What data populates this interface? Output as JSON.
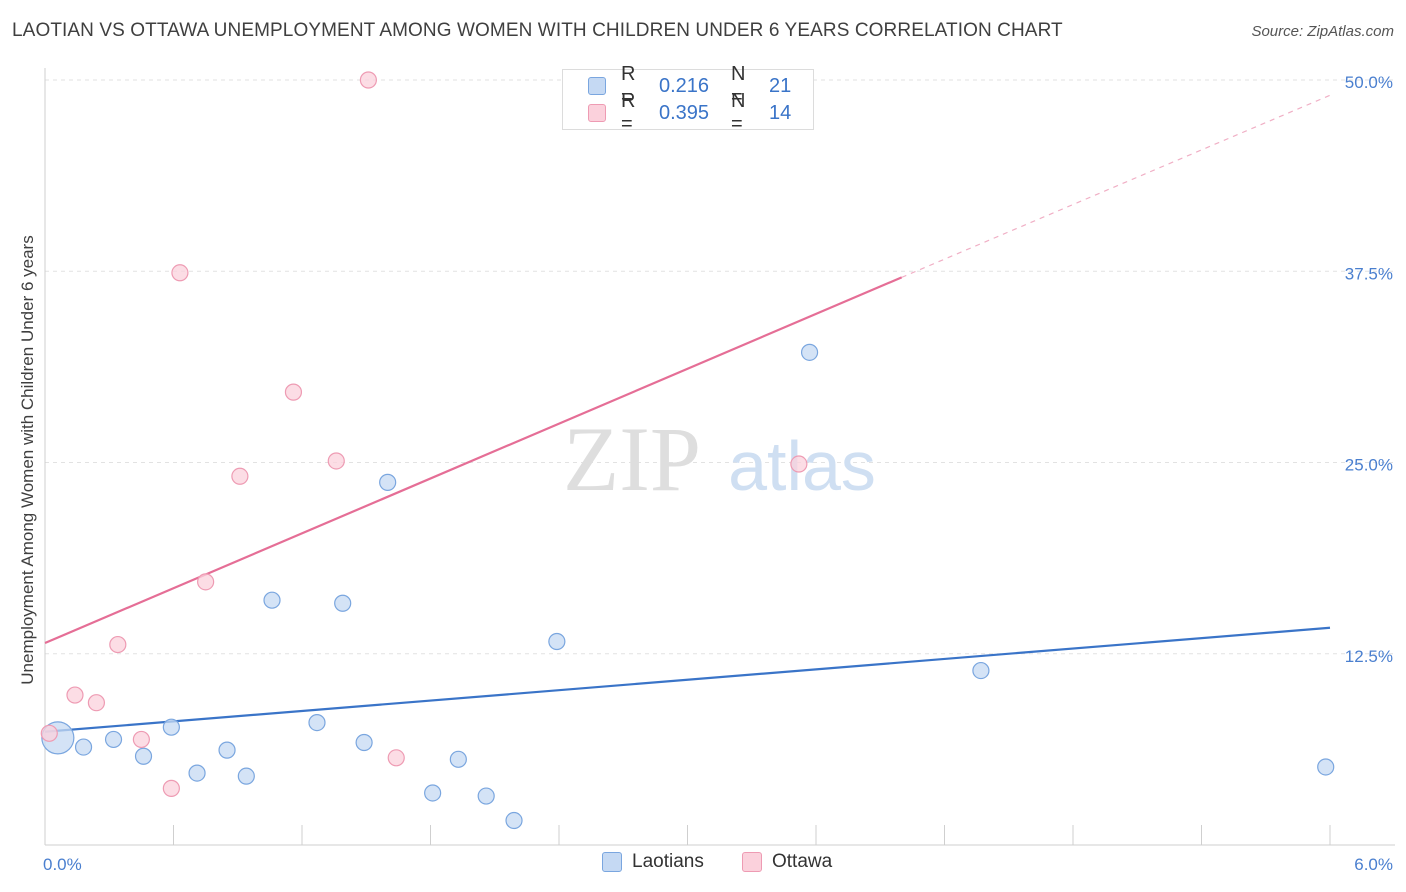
{
  "header": {
    "title": "LAOTIAN VS OTTAWA UNEMPLOYMENT AMONG WOMEN WITH CHILDREN UNDER 6 YEARS CORRELATION CHART",
    "source": "Source: ZipAtlas.com"
  },
  "watermark": {
    "zip": "ZIP",
    "atlas": "atlas"
  },
  "legend_top": {
    "rows": [
      {
        "r_label": "R =",
        "r_value": "0.216",
        "n_label": "N =",
        "n_value": "21"
      },
      {
        "r_label": "R =",
        "r_value": "0.395",
        "n_label": "N =",
        "n_value": "14"
      }
    ]
  },
  "legend_bottom": {
    "laotians": "Laotians",
    "ottawa": "Ottawa"
  },
  "colors": {
    "laotians_fill": "#c5d9f3",
    "laotians_stroke": "#7aa6df",
    "laotians_line": "#3a74c8",
    "ottawa_fill": "#fbd1dc",
    "ottawa_stroke": "#ee9bb3",
    "ottawa_line": "#e56e96",
    "axis_label": "#4a7fcf",
    "grid": "#e2e2e2"
  },
  "chart_data": {
    "type": "scatter",
    "title": "LAOTIAN VS OTTAWA UNEMPLOYMENT AMONG WOMEN WITH CHILDREN UNDER 6 YEARS CORRELATION CHART",
    "xlabel": "",
    "ylabel": "Unemployment Among Women with Children Under 6 years",
    "xlim": [
      0,
      6
    ],
    "ylim": [
      0,
      50
    ],
    "x_tick_labels": [
      "0.0%",
      "6.0%"
    ],
    "y_ticks": [
      12.5,
      25,
      37.5,
      50
    ],
    "y_tick_labels": [
      "12.5%",
      "25.0%",
      "37.5%",
      "50.0%"
    ],
    "series": [
      {
        "name": "Laotians",
        "R": 0.216,
        "N": 21,
        "points": [
          {
            "x": 0.06,
            "y": 7.0,
            "big": true
          },
          {
            "x": 0.18,
            "y": 6.4
          },
          {
            "x": 0.32,
            "y": 6.9
          },
          {
            "x": 0.46,
            "y": 5.8
          },
          {
            "x": 0.59,
            "y": 7.7
          },
          {
            "x": 0.71,
            "y": 4.7
          },
          {
            "x": 0.85,
            "y": 6.2
          },
          {
            "x": 0.94,
            "y": 4.5
          },
          {
            "x": 1.06,
            "y": 16.0
          },
          {
            "x": 1.27,
            "y": 8.0
          },
          {
            "x": 1.39,
            "y": 15.8
          },
          {
            "x": 1.49,
            "y": 6.7
          },
          {
            "x": 1.6,
            "y": 23.7
          },
          {
            "x": 1.81,
            "y": 3.4
          },
          {
            "x": 1.93,
            "y": 5.6
          },
          {
            "x": 2.06,
            "y": 3.2
          },
          {
            "x": 2.19,
            "y": 1.6
          },
          {
            "x": 2.39,
            "y": 13.3
          },
          {
            "x": 3.57,
            "y": 32.2
          },
          {
            "x": 4.37,
            "y": 11.4
          },
          {
            "x": 5.98,
            "y": 5.1
          }
        ],
        "trend": {
          "x0": 0,
          "y0": 7.4,
          "x1": 6.0,
          "y1": 14.2
        }
      },
      {
        "name": "Ottawa",
        "R": 0.395,
        "N": 14,
        "points": [
          {
            "x": 0.02,
            "y": 7.3
          },
          {
            "x": 0.14,
            "y": 9.8
          },
          {
            "x": 0.24,
            "y": 9.3
          },
          {
            "x": 0.34,
            "y": 13.1
          },
          {
            "x": 0.45,
            "y": 6.9
          },
          {
            "x": 0.59,
            "y": 3.7
          },
          {
            "x": 0.63,
            "y": 37.4
          },
          {
            "x": 0.75,
            "y": 17.2
          },
          {
            "x": 0.91,
            "y": 24.1
          },
          {
            "x": 1.16,
            "y": 29.6
          },
          {
            "x": 1.36,
            "y": 25.1
          },
          {
            "x": 1.51,
            "y": 50.0
          },
          {
            "x": 1.64,
            "y": 5.7
          },
          {
            "x": 3.52,
            "y": 24.9
          }
        ],
        "trend": {
          "x0": 0,
          "y0": 13.2,
          "x1": 4.0,
          "y1": 37.1
        },
        "trend_dashed": {
          "x0": 4.0,
          "y0": 37.1,
          "x1": 6.0,
          "y1": 49.0
        }
      }
    ]
  }
}
